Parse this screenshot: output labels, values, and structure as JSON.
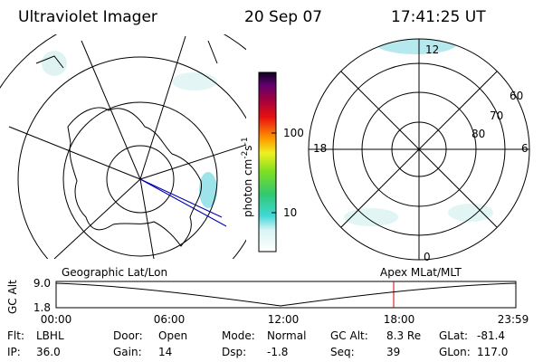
{
  "header": {
    "instrument": "Ultraviolet Imager",
    "date": "20 Sep 07",
    "time": "17:41:25 UT"
  },
  "colorbar": {
    "label_parts": [
      "photon cm",
      "-2",
      "s",
      "-1"
    ],
    "ticks": [
      "100",
      "10"
    ]
  },
  "polar_plot": {
    "mlt_labels": [
      "12",
      "18",
      "6",
      "0"
    ],
    "lat_labels": [
      "60",
      "70",
      "80"
    ]
  },
  "timeline": {
    "ylabel": "GC Alt",
    "yticks": [
      "9.0",
      "1.8"
    ],
    "left_label": "Geographic Lat/Lon",
    "right_label": "Apex MLat/MLT",
    "xticks": [
      "00:00",
      "06:00",
      "12:00",
      "18:00",
      "23:59"
    ]
  },
  "footer": {
    "rows": [
      [
        {
          "label": "Flt:",
          "value": "LBHL"
        },
        {
          "label": "Door:",
          "value": "Open"
        },
        {
          "label": "Mode:",
          "value": "Normal"
        },
        {
          "label": "GC Alt:",
          "value": "8.3 Re"
        },
        {
          "label": "GLat:",
          "value": "-81.4"
        }
      ],
      [
        {
          "label": "IP:",
          "value": "36.0"
        },
        {
          "label": "Gain:",
          "value": "14"
        },
        {
          "label": "Dsp:",
          "value": "-1.8"
        },
        {
          "label": "Seq:",
          "value": "39"
        },
        {
          "label": "GLon:",
          "value": "117.0"
        }
      ]
    ]
  }
}
